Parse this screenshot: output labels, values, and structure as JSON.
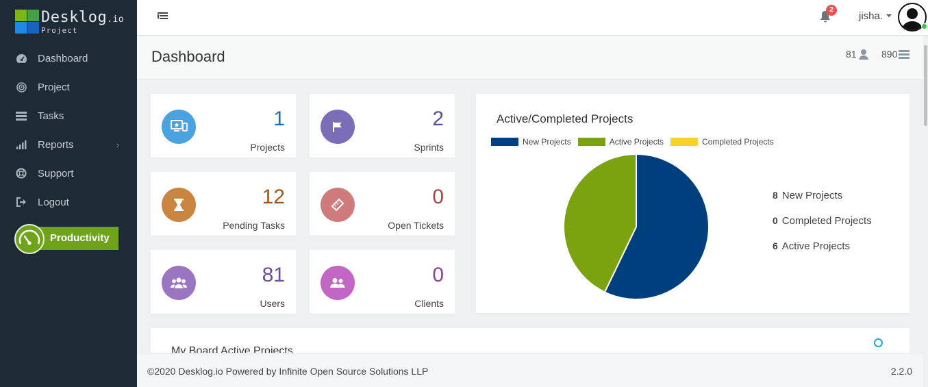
{
  "brand": {
    "name": "Desklog",
    "suffix": ".io",
    "product": "Project",
    "colors": [
      "#7cb518",
      "#1e88e5",
      "#1565c0",
      "#43a047"
    ]
  },
  "sidebar": {
    "items": [
      {
        "label": "Dashboard",
        "icon": "dashboard-icon"
      },
      {
        "label": "Project",
        "icon": "target-icon"
      },
      {
        "label": "Tasks",
        "icon": "tasks-icon"
      },
      {
        "label": "Reports",
        "icon": "bar-chart-icon"
      },
      {
        "label": "Support",
        "icon": "lifebuoy-icon"
      },
      {
        "label": "Logout",
        "icon": "logout-icon"
      }
    ],
    "productivity_label": "Productivity"
  },
  "topbar": {
    "notification_count": "2",
    "user_name": "jisha."
  },
  "header": {
    "title": "Dashboard",
    "users_count": "81",
    "tasks_count": "890"
  },
  "stats": [
    {
      "value": "1",
      "label": "Projects",
      "color": "#4aa3df",
      "value_color": "#1f6fa8",
      "icon": "monitor-star-icon"
    },
    {
      "value": "2",
      "label": "Sprints",
      "color": "#7b6db7",
      "value_color": "#5b4e96",
      "icon": "flag-icon"
    },
    {
      "value": "12",
      "label": "Pending Tasks",
      "color": "#c98540",
      "value_color": "#a2561c",
      "icon": "hourglass-icon"
    },
    {
      "value": "0",
      "label": "Open Tickets",
      "color": "#d07b7b",
      "value_color": "#a34b4b",
      "icon": "ticket-icon"
    },
    {
      "value": "81",
      "label": "Users",
      "color": "#9a76c2",
      "value_color": "#6d4e96",
      "icon": "users-icon"
    },
    {
      "value": "0",
      "label": "Clients",
      "color": "#c266c6",
      "value_color": "#8d4592",
      "icon": "clients-icon"
    }
  ],
  "chart": {
    "title": "Active/Completed Projects",
    "legend": [
      {
        "label": "New Projects",
        "color": "#003f7d"
      },
      {
        "label": "Active Projects",
        "color": "#7aa30f"
      },
      {
        "label": "Completed Projects",
        "color": "#f5d327"
      }
    ],
    "summary": [
      {
        "value": "8",
        "label": "New Projects"
      },
      {
        "value": "0",
        "label": "Completed Projects"
      },
      {
        "value": "6",
        "label": "Active Projects"
      }
    ]
  },
  "chart_data": {
    "type": "pie",
    "title": "Active/Completed Projects",
    "categories": [
      "New Projects",
      "Active Projects",
      "Completed Projects"
    ],
    "values": [
      8,
      6,
      0
    ],
    "colors": [
      "#003f7d",
      "#7aa30f",
      "#f5d327"
    ],
    "legend_position": "top-left"
  },
  "board": {
    "title": "My Board Active Projects"
  },
  "footer": {
    "text": "©2020 Desklog.io Powered by Infinite Open Source Solutions LLP",
    "version": "2.2.0"
  }
}
